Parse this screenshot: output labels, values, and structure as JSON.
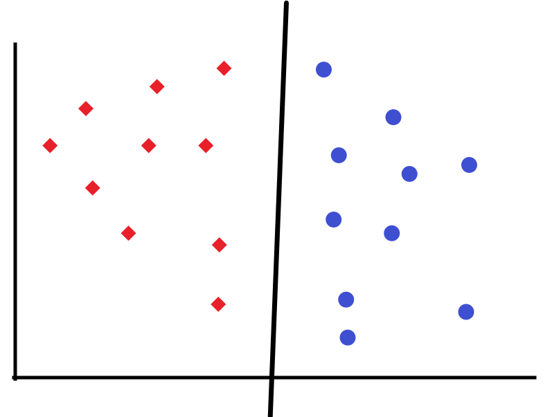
{
  "chart_data": {
    "type": "scatter",
    "title": "",
    "xlabel": "",
    "ylabel": "",
    "xlim": [
      0,
      100
    ],
    "ylim": [
      0,
      100
    ],
    "grid": false,
    "legend": "none",
    "series": [
      {
        "marker": "diamond",
        "color": "#e8202a",
        "points": [
          {
            "x": 6.7,
            "y": 69.6
          },
          {
            "x": 13.6,
            "y": 80.7
          },
          {
            "x": 14.9,
            "y": 56.9
          },
          {
            "x": 21.8,
            "y": 43.3
          },
          {
            "x": 25.7,
            "y": 69.6
          },
          {
            "x": 27.3,
            "y": 87.3
          },
          {
            "x": 36.7,
            "y": 69.6
          },
          {
            "x": 40.2,
            "y": 92.8
          },
          {
            "x": 39.3,
            "y": 39.8
          },
          {
            "x": 39.1,
            "y": 22.0
          }
        ]
      },
      {
        "marker": "circle",
        "color": "#3e4fd1",
        "points": [
          {
            "x": 59.4,
            "y": 92.4
          },
          {
            "x": 72.8,
            "y": 78.1
          },
          {
            "x": 62.3,
            "y": 66.7
          },
          {
            "x": 75.9,
            "y": 61.1
          },
          {
            "x": 87.4,
            "y": 63.8
          },
          {
            "x": 61.3,
            "y": 47.4
          },
          {
            "x": 72.5,
            "y": 43.3
          },
          {
            "x": 63.7,
            "y": 23.4
          },
          {
            "x": 86.8,
            "y": 19.7
          },
          {
            "x": 64.0,
            "y": 12.0
          }
        ]
      }
    ],
    "separator": {
      "color": "#000000",
      "points": [
        {
          "x": 52.2,
          "y": 112.4
        },
        {
          "x": 49.1,
          "y": -11.6
        }
      ]
    },
    "axis_color": "#000000"
  }
}
